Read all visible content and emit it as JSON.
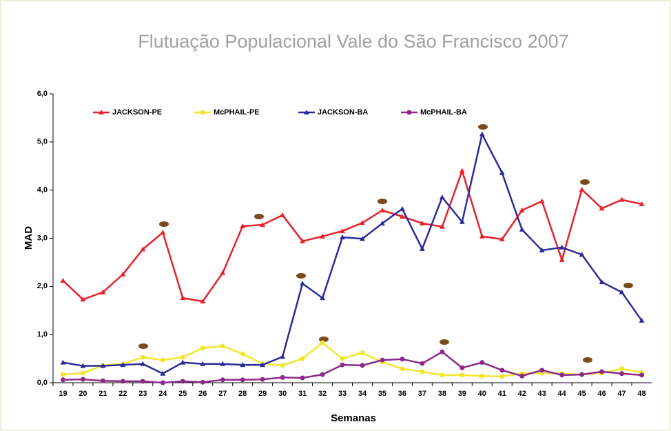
{
  "chart_data": {
    "type": "line",
    "title": "Flutuação Populacional Vale do São Francisco 2007",
    "x_label": "Semanas",
    "y_label": "MAD",
    "categories": [
      "19",
      "20",
      "21",
      "22",
      "23",
      "24",
      "25",
      "26",
      "27",
      "28",
      "29",
      "30",
      "31",
      "32",
      "33",
      "34",
      "35",
      "36",
      "37",
      "38",
      "39",
      "40",
      "41",
      "42",
      "43",
      "44",
      "45",
      "46",
      "47",
      "48"
    ],
    "ylim": [
      0,
      6
    ],
    "yticks": [
      {
        "value": 0,
        "label": "0,0"
      },
      {
        "value": 1,
        "label": "1,0"
      },
      {
        "value": 2,
        "label": "2,0"
      },
      {
        "value": 3,
        "label": "3,0"
      },
      {
        "value": 4,
        "label": "4,0"
      },
      {
        "value": 5,
        "label": "5,0"
      },
      {
        "value": 6,
        "label": "6,0"
      }
    ],
    "grid": false,
    "legend": "top-left",
    "series": [
      {
        "name": "JACKSON-PE",
        "color": "#e8202a",
        "marker": "triangle",
        "values": [
          2.12,
          1.73,
          1.88,
          2.25,
          2.77,
          3.12,
          1.76,
          1.69,
          2.28,
          3.25,
          3.28,
          3.48,
          2.94,
          3.04,
          3.15,
          3.32,
          3.58,
          3.45,
          3.31,
          3.24,
          4.4,
          3.04,
          2.98,
          3.58,
          3.77,
          2.55,
          4.01,
          3.62,
          3.8,
          3.71
        ]
      },
      {
        "name": "McPHAIL-PE",
        "color": "#f2e52a",
        "marker": "circle",
        "values": [
          0.17,
          0.2,
          0.36,
          0.39,
          0.53,
          0.47,
          0.53,
          0.72,
          0.76,
          0.6,
          0.39,
          0.36,
          0.5,
          0.83,
          0.5,
          0.62,
          0.43,
          0.29,
          0.23,
          0.16,
          0.16,
          0.14,
          0.13,
          0.19,
          0.2,
          0.19,
          0.17,
          0.2,
          0.29,
          0.21
        ]
      },
      {
        "name": "JACKSON-BA",
        "color": "#2b2b9a",
        "marker": "triangle",
        "values": [
          0.42,
          0.35,
          0.35,
          0.37,
          0.39,
          0.19,
          0.42,
          0.39,
          0.39,
          0.37,
          0.37,
          0.54,
          2.06,
          1.76,
          3.02,
          2.99,
          3.31,
          3.61,
          2.78,
          3.85,
          3.34,
          5.16,
          4.36,
          3.18,
          2.75,
          2.81,
          2.66,
          2.09,
          1.88,
          1.29
        ]
      },
      {
        "name": "McPHAIL-BA",
        "color": "#8b2a8b",
        "marker": "circle",
        "values": [
          0.06,
          0.07,
          0.04,
          0.03,
          0.03,
          0.0,
          0.03,
          0.01,
          0.06,
          0.06,
          0.07,
          0.11,
          0.1,
          0.17,
          0.37,
          0.36,
          0.47,
          0.49,
          0.4,
          0.64,
          0.31,
          0.42,
          0.26,
          0.14,
          0.26,
          0.16,
          0.17,
          0.23,
          0.19,
          0.16
        ]
      }
    ]
  }
}
